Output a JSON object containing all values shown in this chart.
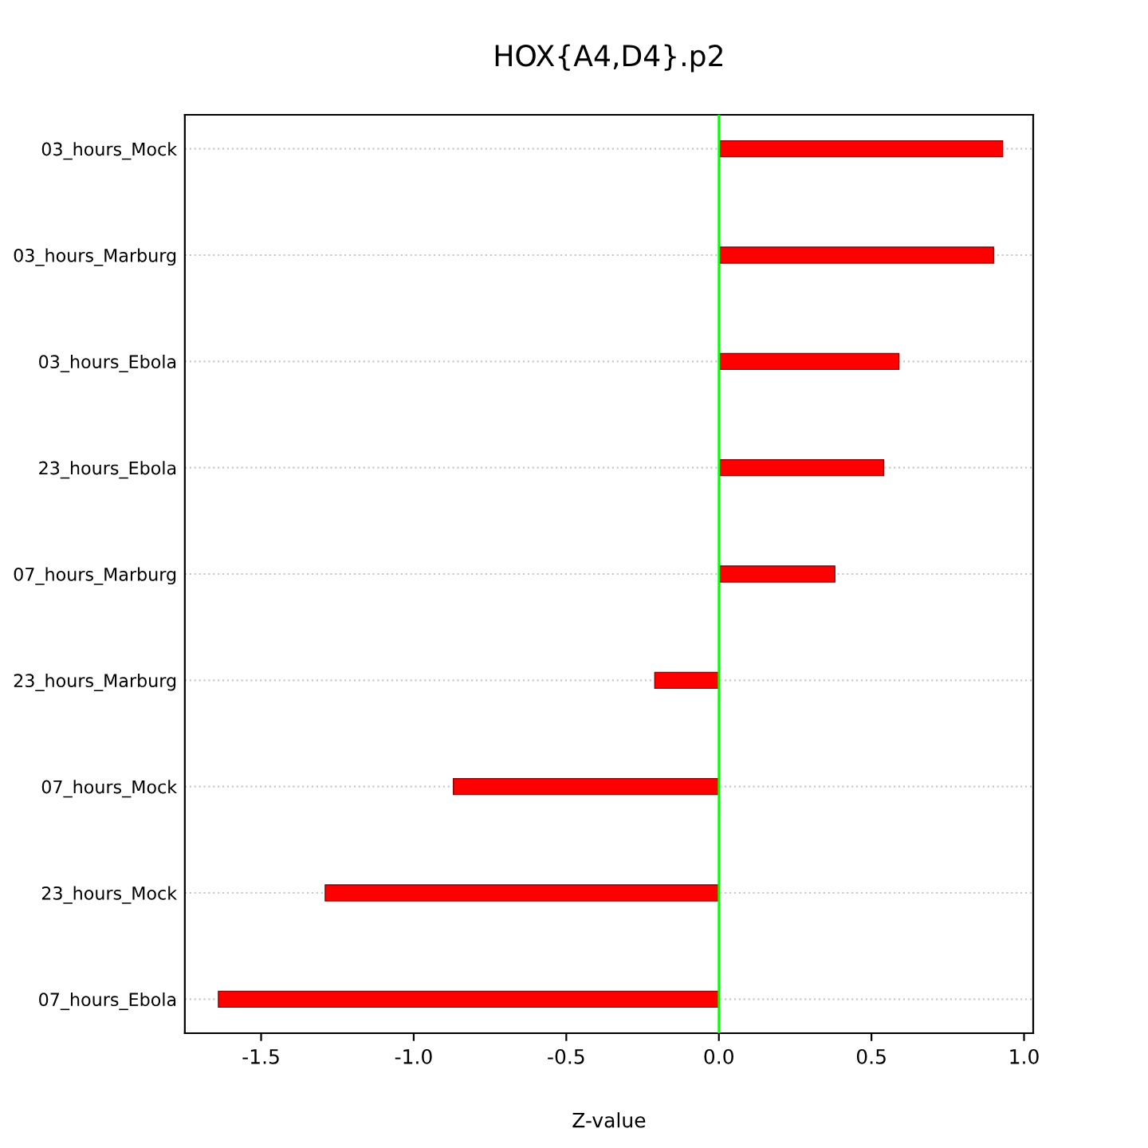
{
  "chart_data": {
    "type": "bar",
    "orientation": "horizontal",
    "title": "HOX{A4,D4}.p2",
    "xlabel": "Z-value",
    "categories": [
      "03_hours_Mock",
      "03_hours_Marburg",
      "03_hours_Ebola",
      "23_hours_Ebola",
      "07_hours_Marburg",
      "23_hours_Marburg",
      "07_hours_Mock",
      "23_hours_Mock",
      "07_hours_Ebola"
    ],
    "values": [
      0.93,
      0.9,
      0.59,
      0.54,
      0.38,
      -0.21,
      -0.87,
      -1.29,
      -1.64
    ],
    "color": "#ff0000",
    "xlim": [
      -1.75,
      1.03
    ],
    "xticks": [
      {
        "value": -1.5,
        "label": "-1.5"
      },
      {
        "value": -1.0,
        "label": "-1.0"
      },
      {
        "value": -0.5,
        "label": "-0.5"
      },
      {
        "value": 0.0,
        "label": "0.0"
      },
      {
        "value": 0.5,
        "label": "0.5"
      },
      {
        "value": 1.0,
        "label": "1.0"
      }
    ],
    "grid": "y",
    "ref_lines": [
      {
        "axis": "x",
        "value": 0,
        "color": "#00ff00"
      }
    ]
  }
}
